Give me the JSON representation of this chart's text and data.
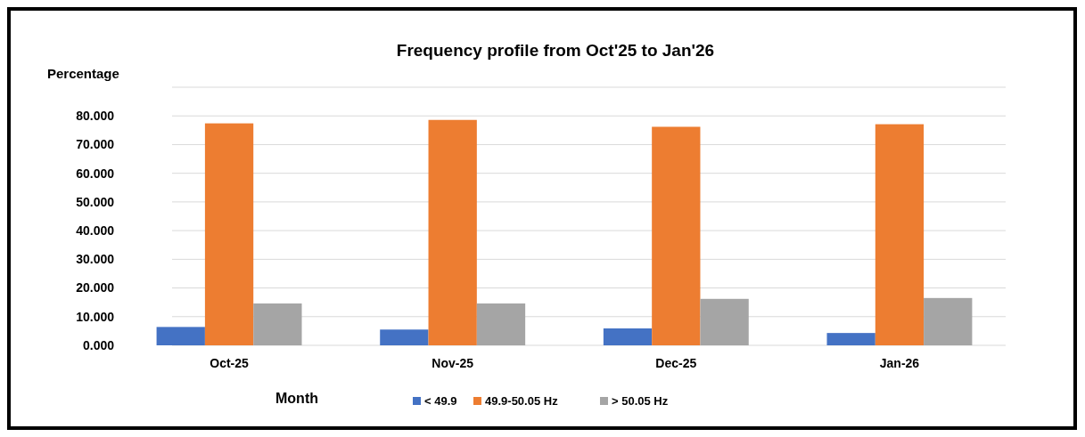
{
  "chart_data": {
    "type": "bar",
    "title": "Frequency profile from Oct'25 to Jan'26",
    "xlabel": "Month",
    "ylabel": "Percentage",
    "categories": [
      "Oct-25",
      "Nov-25",
      "Dec-25",
      "Jan-26"
    ],
    "series": [
      {
        "name": "< 49.9",
        "color": "#4472c4",
        "values": [
          6.4,
          5.5,
          5.9,
          4.3
        ]
      },
      {
        "name": "49.9-50.05 Hz",
        "color": "#ed7d31",
        "values": [
          77.4,
          78.6,
          76.2,
          77.1
        ]
      },
      {
        "name": "> 50.05 Hz",
        "color": "#a5a5a5",
        "values": [
          14.6,
          14.6,
          16.2,
          16.5
        ]
      }
    ],
    "ylim": [
      0,
      90
    ],
    "yticks": [
      {
        "value": 0,
        "label": "0.000"
      },
      {
        "value": 10,
        "label": "10.000"
      },
      {
        "value": 20,
        "label": "20.000"
      },
      {
        "value": 30,
        "label": "30.000"
      },
      {
        "value": 40,
        "label": "40.000"
      },
      {
        "value": 50,
        "label": "50.000"
      },
      {
        "value": 60,
        "label": "60.000"
      },
      {
        "value": 70,
        "label": "70.000"
      },
      {
        "value": 80,
        "label": "80.000"
      },
      {
        "value": 90,
        "label": null
      }
    ],
    "grid": true,
    "legend": "bottom"
  }
}
